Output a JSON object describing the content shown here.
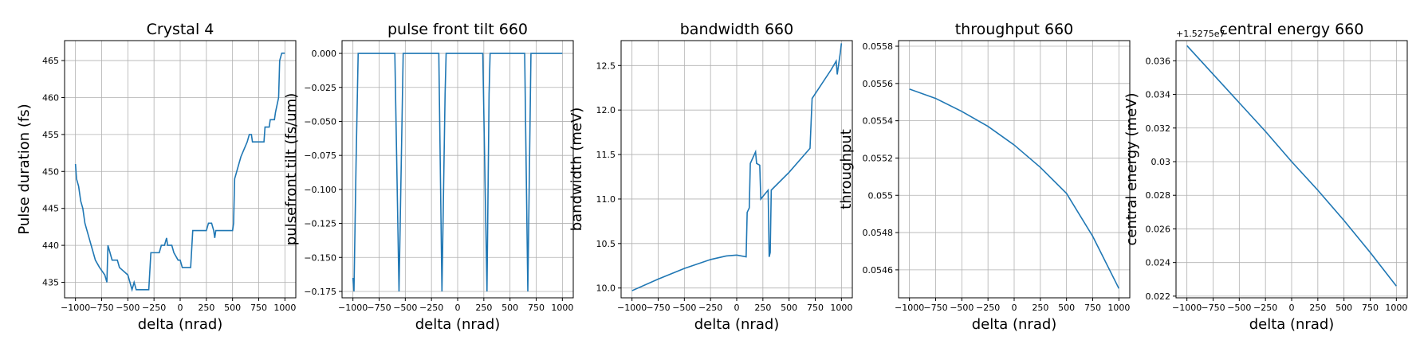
{
  "chart_data": [
    {
      "type": "line",
      "title": "Crystal 4",
      "xlabel": "delta (nrad)",
      "ylabel": "Pulse duration (fs)",
      "color": "#1f77b4",
      "grid": true,
      "x": [
        -1000,
        -990,
        -970,
        -950,
        -930,
        -910,
        -890,
        -870,
        -850,
        -830,
        -810,
        -770,
        -720,
        -700,
        -690,
        -670,
        -650,
        -600,
        -580,
        -500,
        -480,
        -460,
        -440,
        -420,
        -300,
        -280,
        -200,
        -180,
        -150,
        -130,
        -120,
        -80,
        -60,
        -20,
        0,
        20,
        100,
        120,
        250,
        270,
        300,
        320,
        330,
        340,
        500,
        510,
        520,
        540,
        560,
        580,
        610,
        640,
        660,
        680,
        690,
        800,
        810,
        850,
        860,
        900,
        910,
        940,
        950,
        970,
        1000
      ],
      "values": [
        451,
        449,
        448,
        446,
        445,
        443,
        442,
        441,
        440,
        439,
        438,
        437,
        436,
        435,
        440,
        439,
        438,
        438,
        437,
        436,
        435,
        434,
        435,
        434,
        434,
        439,
        439,
        440,
        440,
        441,
        440,
        440,
        439,
        438,
        438,
        437,
        437,
        442,
        442,
        443,
        443,
        442,
        441,
        442,
        442,
        443,
        449,
        450,
        451,
        452,
        453,
        454,
        455,
        455,
        454,
        454,
        456,
        456,
        457,
        457,
        458,
        460,
        465,
        466,
        466
      ],
      "xlim": [
        -1104,
        1104
      ],
      "ylim": [
        432.9,
        467.7
      ],
      "xticks": [
        {
          "value": -1000,
          "label": "−1000"
        },
        {
          "value": -750,
          "label": "−750"
        },
        {
          "value": -500,
          "label": "−500"
        },
        {
          "value": -250,
          "label": "−250"
        },
        0,
        250,
        500,
        750,
        1000
      ],
      "yticks": [
        435,
        440,
        445,
        450,
        455,
        460,
        465
      ]
    },
    {
      "type": "line",
      "title": "pulse front tilt 660",
      "xlabel": "delta (nrad)",
      "ylabel": "pulsefront tilt (fs/um)",
      "color": "#1f77b4",
      "grid": true,
      "x": [
        -1000,
        -990,
        -970,
        -950,
        -600,
        -560,
        -520,
        -180,
        -150,
        -120,
        -110,
        240,
        280,
        300,
        310,
        640,
        670,
        700,
        1000
      ],
      "values": [
        -0.165,
        -0.175,
        -0.08,
        0,
        0,
        -0.175,
        0,
        0,
        -0.175,
        -0.03,
        0,
        0,
        -0.175,
        -0.03,
        0,
        0,
        -0.175,
        0,
        0
      ],
      "xlim": [
        -1104,
        1104
      ],
      "ylim": [
        -0.1797,
        0.0094
      ],
      "xticks": [
        {
          "value": -1000,
          "label": "−1000"
        },
        {
          "value": -750,
          "label": "−750"
        },
        {
          "value": -500,
          "label": "−500"
        },
        {
          "value": -250,
          "label": "−250"
        },
        0,
        250,
        500,
        750,
        1000
      ],
      "yticks": [
        {
          "value": 0,
          "label": "0.000"
        },
        {
          "value": -0.025,
          "label": "−0.025"
        },
        {
          "value": -0.05,
          "label": "−0.050"
        },
        {
          "value": -0.075,
          "label": "−0.075"
        },
        {
          "value": -0.1,
          "label": "−0.100"
        },
        {
          "value": -0.125,
          "label": "−0.125"
        },
        {
          "value": -0.15,
          "label": "−0.150"
        },
        {
          "value": -0.175,
          "label": "−0.175"
        }
      ]
    },
    {
      "type": "line",
      "title": "bandwidth 660",
      "xlabel": "delta (nrad)",
      "ylabel": "bandwidth (meV)",
      "color": "#1f77b4",
      "grid": true,
      "x": [
        -1000,
        -750,
        -500,
        -250,
        -100,
        0,
        90,
        100,
        120,
        130,
        180,
        190,
        220,
        230,
        300,
        310,
        320,
        330,
        500,
        700,
        720,
        900,
        950,
        960,
        990,
        1000
      ],
      "values": [
        9.97,
        10.1,
        10.22,
        10.32,
        10.36,
        10.37,
        10.35,
        10.85,
        10.9,
        11.4,
        11.53,
        11.4,
        11.38,
        11.0,
        11.1,
        10.35,
        10.4,
        11.1,
        11.3,
        11.57,
        12.13,
        12.45,
        12.55,
        12.4,
        12.65,
        12.75
      ],
      "xlim": [
        -1104,
        1104
      ],
      "ylim": [
        9.89,
        12.78
      ],
      "xticks": [
        {
          "value": -1000,
          "label": "−1000"
        },
        {
          "value": -750,
          "label": "−750"
        },
        {
          "value": -500,
          "label": "−500"
        },
        {
          "value": -250,
          "label": "−250"
        },
        0,
        250,
        500,
        750,
        1000
      ],
      "yticks": [
        {
          "value": 10,
          "label": "10.0"
        },
        10.5,
        {
          "value": 11,
          "label": "11.0"
        },
        11.5,
        {
          "value": 12,
          "label": "12.0"
        },
        12.5
      ]
    },
    {
      "type": "line",
      "title": "throughput 660",
      "xlabel": "delta (nrad)",
      "ylabel": "throughput",
      "color": "#1f77b4",
      "grid": true,
      "x": [
        -1000,
        -750,
        -500,
        -250,
        0,
        250,
        500,
        750,
        1000
      ],
      "values": [
        0.05557,
        0.05552,
        0.05545,
        0.05537,
        0.05527,
        0.05515,
        0.05501,
        0.05478,
        0.0545
      ],
      "xlim": [
        -1104,
        1104
      ],
      "ylim": [
        0.05445,
        0.05583
      ],
      "xticks": [
        {
          "value": -1000,
          "label": "−1000"
        },
        {
          "value": -750,
          "label": "−750"
        },
        {
          "value": -500,
          "label": "−500"
        },
        {
          "value": -250,
          "label": "−250"
        },
        0,
        250,
        500,
        750,
        1000
      ],
      "yticks": [
        0.0546,
        0.0548,
        0.055,
        0.0552,
        0.0554,
        0.0556,
        0.0558
      ]
    },
    {
      "type": "line",
      "title": "central energy 660",
      "xlabel": "delta (nrad)",
      "ylabel": "central energy (meV)",
      "offset_text": "+1.5275e7",
      "color": "#1f77b4",
      "grid": true,
      "x": [
        -1000,
        -750,
        -500,
        -250,
        0,
        250,
        500,
        750,
        1000
      ],
      "values": [
        0.0369,
        0.0352,
        0.0335,
        0.0318,
        0.03,
        0.0283,
        0.0265,
        0.0246,
        0.0226
      ],
      "xlim": [
        -1104,
        1104
      ],
      "ylim": [
        0.0219,
        0.0372
      ],
      "xticks": [
        {
          "value": -1000,
          "label": "−1000"
        },
        {
          "value": -750,
          "label": "−750"
        },
        {
          "value": -500,
          "label": "−500"
        },
        {
          "value": -250,
          "label": "−250"
        },
        0,
        250,
        500,
        750,
        1000
      ],
      "yticks": [
        0.022,
        0.024,
        0.026,
        0.028,
        0.03,
        0.032,
        0.034,
        0.036
      ]
    }
  ]
}
